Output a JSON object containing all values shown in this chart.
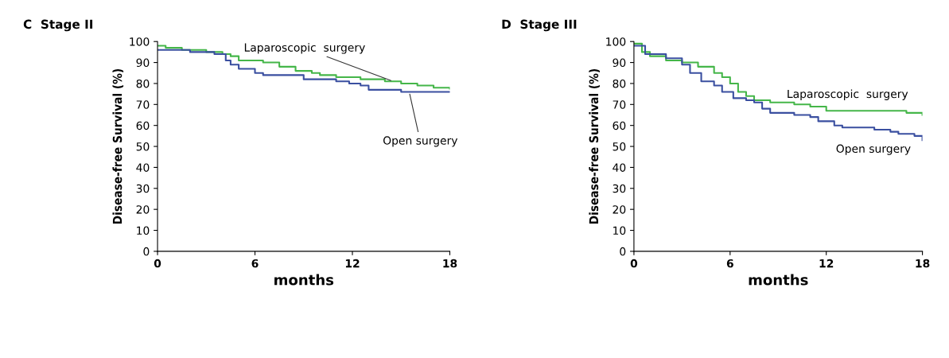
{
  "chart_data": [
    {
      "type": "step",
      "title": "C  Stage II",
      "xlabel": "months",
      "ylabel": "Disease-free Survival (%)",
      "xlim": [
        0,
        18
      ],
      "ylim": [
        0,
        100
      ],
      "xticks": [
        0,
        6,
        12,
        18
      ],
      "yticks": [
        0,
        10,
        20,
        30,
        40,
        50,
        60,
        70,
        80,
        90,
        100
      ],
      "series": [
        {
          "color": "#45b649",
          "x": [
            0,
            0.5,
            1.5,
            3,
            4,
            4.5,
            5,
            6.5,
            7.5,
            8.5,
            9.5,
            10,
            11,
            12.5,
            14,
            15,
            16,
            17,
            18
          ],
          "values": [
            98,
            97,
            96,
            95,
            94,
            93,
            91,
            90,
            88,
            86,
            85,
            84,
            83,
            82,
            81,
            80,
            79,
            78,
            77.5
          ]
        },
        {
          "color": "#3a4fa0",
          "x": [
            0,
            2,
            3.5,
            4.2,
            4.5,
            5,
            6,
            6.5,
            9,
            11,
            11.8,
            12.5,
            13,
            15,
            18
          ],
          "values": [
            96,
            95,
            94,
            91,
            89,
            87,
            85,
            84,
            82,
            81,
            80,
            79,
            77,
            76,
            76
          ]
        }
      ],
      "annotations": [
        {
          "text": "Laparoscopic  surgery",
          "x": 14.5,
          "y": 81
        },
        {
          "text": "Open surgery",
          "x": 15.5,
          "y": 76
        }
      ]
    },
    {
      "type": "step",
      "title": "D  Stage III",
      "xlabel": "months",
      "ylabel": "Disease-free Survival (%)",
      "xlim": [
        0,
        18
      ],
      "ylim": [
        0,
        100
      ],
      "xticks": [
        0,
        6,
        12,
        18
      ],
      "yticks": [
        0,
        10,
        20,
        30,
        40,
        50,
        60,
        70,
        80,
        90,
        100
      ],
      "series": [
        {
          "color": "#45b649",
          "x": [
            0,
            0.5,
            1,
            2,
            3,
            4,
            5,
            5.5,
            6,
            6.5,
            7,
            7.5,
            8.5,
            10,
            11,
            12,
            16,
            17,
            18
          ],
          "values": [
            99,
            95,
            93,
            91,
            90,
            88,
            85,
            83,
            80,
            76,
            74,
            72,
            71,
            70,
            69,
            67,
            67,
            66,
            65
          ]
        },
        {
          "color": "#3a4fa0",
          "x": [
            0,
            0.7,
            2,
            3,
            3.5,
            4.2,
            5,
            5.5,
            6.2,
            7,
            7.5,
            8,
            8.5,
            10,
            11,
            11.5,
            12.5,
            13,
            15,
            16,
            16.5,
            17.5,
            18
          ],
          "values": [
            98,
            94,
            92,
            89,
            85,
            81,
            79,
            76,
            73,
            72,
            71,
            68,
            66,
            65,
            64,
            62,
            60,
            59,
            58,
            57,
            56,
            55,
            53
          ]
        }
      ],
      "annotations": [
        "Laparoscopic  surgery",
        "Open surgery"
      ]
    }
  ]
}
